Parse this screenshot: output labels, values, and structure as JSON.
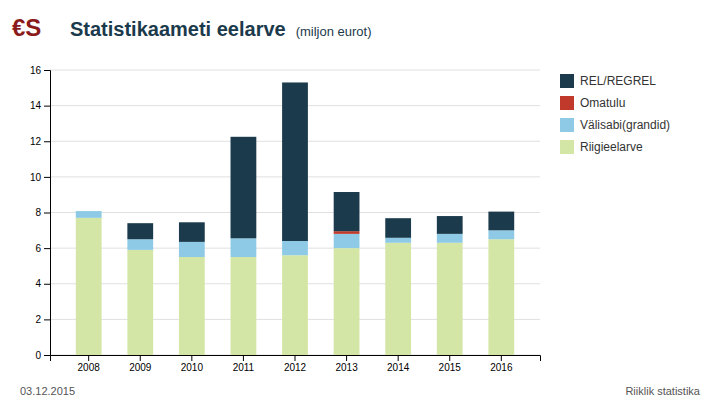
{
  "chart_data": {
    "type": "bar",
    "title": "Statistikaameti eelarve",
    "subtitle": "(miljon eurot)",
    "categories": [
      "2008",
      "2009",
      "2010",
      "2011",
      "2012",
      "2013",
      "2014",
      "2015",
      "2016"
    ],
    "series": [
      {
        "name": "Riigieelarve",
        "color": "#d4e6a5",
        "values": [
          7.7,
          5.9,
          5.5,
          5.5,
          5.6,
          6.0,
          6.3,
          6.3,
          6.5
        ]
      },
      {
        "name": "Välisabi(grandid)",
        "color": "#8ecae6",
        "values": [
          0.38,
          0.6,
          0.85,
          1.05,
          0.8,
          0.8,
          0.28,
          0.5,
          0.5
        ]
      },
      {
        "name": "Omatulu",
        "color": "#c0392b",
        "values": [
          0.0,
          0.0,
          0.0,
          0.0,
          0.0,
          0.15,
          0.0,
          0.0,
          0.0
        ]
      },
      {
        "name": "REL/REGREL",
        "color": "#1b3a4b",
        "values": [
          0.0,
          0.9,
          1.1,
          5.7,
          8.9,
          2.2,
          1.1,
          1.0,
          1.05
        ]
      }
    ],
    "stacked": true,
    "ylim": [
      0,
      16
    ],
    "yticks": [
      0,
      2,
      4,
      6,
      8,
      10,
      12,
      14,
      16
    ],
    "grid": true,
    "legend": "right",
    "annotations": [
      "€S",
      "03.12.2015",
      "Riiklik statistika"
    ]
  }
}
